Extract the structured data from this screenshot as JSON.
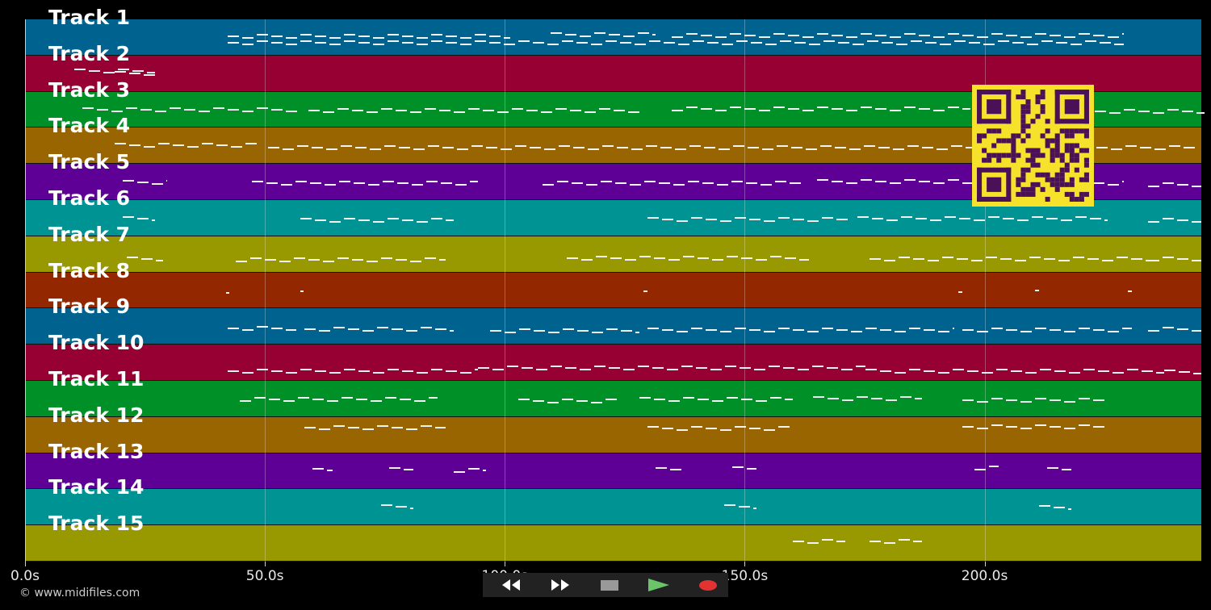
{
  "tracks": [
    {
      "label": "Track 1",
      "color": "#00628f"
    },
    {
      "label": "Track 2",
      "color": "#960033"
    },
    {
      "label": "Track 3",
      "color": "#009028"
    },
    {
      "label": "Track 4",
      "color": "#986500"
    },
    {
      "label": "Track 5",
      "color": "#5e0096"
    },
    {
      "label": "Track 6",
      "color": "#009394"
    },
    {
      "label": "Track 7",
      "color": "#989800"
    },
    {
      "label": "Track 8",
      "color": "#932800"
    },
    {
      "label": "Track 9",
      "color": "#00628f"
    },
    {
      "label": "Track 10",
      "color": "#960033"
    },
    {
      "label": "Track 11",
      "color": "#009028"
    },
    {
      "label": "Track 12",
      "color": "#986500"
    },
    {
      "label": "Track 13",
      "color": "#5e0096"
    },
    {
      "label": "Track 14",
      "color": "#009394"
    },
    {
      "label": "Track 15",
      "color": "#989800"
    }
  ],
  "timeline": {
    "axis_max_seconds": 245,
    "ticks": [
      {
        "value": 0,
        "label": "0.0s"
      },
      {
        "value": 50,
        "label": "50.0s"
      },
      {
        "value": 100,
        "label": "100.0s"
      },
      {
        "value": 150,
        "label": "150.0s"
      },
      {
        "value": 200,
        "label": "200.0s"
      }
    ]
  },
  "controls": [
    {
      "name": "rewind-button",
      "icon": "rewind-icon",
      "color": "#111"
    },
    {
      "name": "fast-forward-button",
      "icon": "fast-forward-icon",
      "color": "#111"
    },
    {
      "name": "stop-button",
      "icon": "stop-icon",
      "color": "#333"
    },
    {
      "name": "play-button",
      "icon": "play-icon",
      "color": "#1e5e1e"
    },
    {
      "name": "record-button",
      "icon": "record-icon",
      "color": "#5a1515"
    }
  ],
  "copyright": "© www.midifiles.com",
  "qr_code": {
    "icon": "qr-code-icon",
    "color": "#f6e12b",
    "module_color": "#4b1158"
  }
}
